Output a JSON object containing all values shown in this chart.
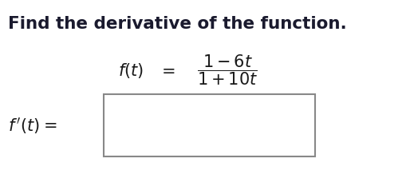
{
  "title": "Find the derivative of the function.",
  "title_fontsize": 15.5,
  "title_color": "#1a1a2e",
  "background_color": "#ffffff",
  "text_color": "#1a1a1a",
  "box_edge_color": "#888888",
  "func_fontsize": 15,
  "deriv_fontsize": 15
}
